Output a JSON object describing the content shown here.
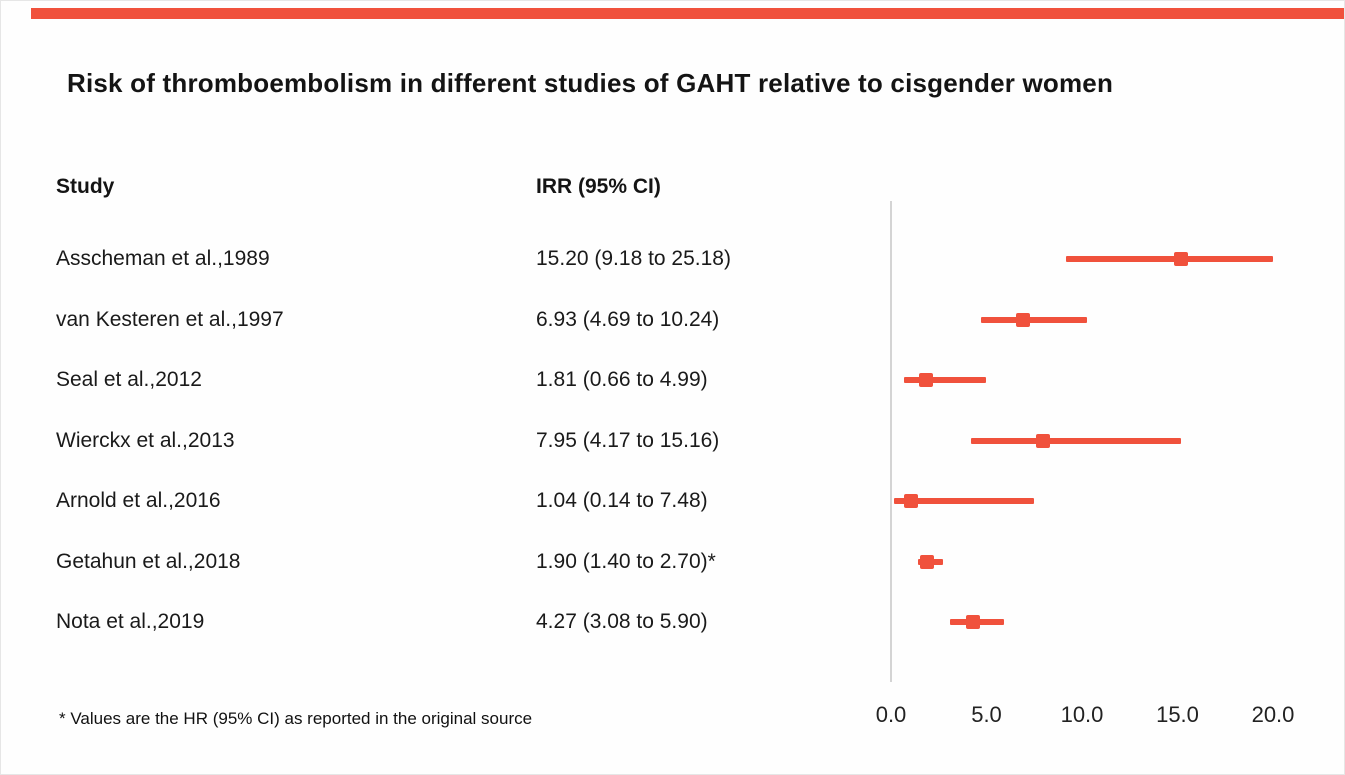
{
  "page": {
    "accent_color": "#f0513c"
  },
  "chart_data": {
    "type": "scatter",
    "subtype": "forest-plot",
    "title": "Risk of thromboembolism in different studies of GAHT relative to cisgender women",
    "columns": [
      "Study",
      "IRR (95% CI)"
    ],
    "studies": [
      {
        "name": "Asscheman et al.,1989",
        "irr_label": "15.20 (9.18 to 25.18)",
        "est": 15.2,
        "lo": 9.18,
        "hi": 25.18
      },
      {
        "name": "van Kesteren et al.,1997",
        "irr_label": "6.93 (4.69 to 10.24)",
        "est": 6.93,
        "lo": 4.69,
        "hi": 10.24
      },
      {
        "name": "Seal et al.,2012",
        "irr_label": "1.81 (0.66 to 4.99)",
        "est": 1.81,
        "lo": 0.66,
        "hi": 4.99
      },
      {
        "name": "Wierckx et al.,2013",
        "irr_label": "7.95 (4.17 to 15.16)",
        "est": 7.95,
        "lo": 4.17,
        "hi": 15.16
      },
      {
        "name": "Arnold et al.,2016",
        "irr_label": "1.04 (0.14 to 7.48)",
        "est": 1.04,
        "lo": 0.14,
        "hi": 7.48
      },
      {
        "name": "Getahun et al.,2018",
        "irr_label": "1.90 (1.40 to 2.70)*",
        "est": 1.9,
        "lo": 1.4,
        "hi": 2.7
      },
      {
        "name": "Nota et al.,2019",
        "irr_label": "4.27 (3.08 to 5.90)",
        "est": 4.27,
        "lo": 3.08,
        "hi": 5.9
      }
    ],
    "x_axis": {
      "min": 0,
      "max": 20,
      "ticks": [
        0,
        5,
        10,
        15,
        20
      ],
      "tick_labels": [
        "0.0",
        "5.0",
        "10.0",
        "15.0",
        "20.0"
      ]
    },
    "footnote": "* Values are the HR (95% CI) as reported in the original source",
    "marker_color": "#f0513c",
    "axis_line_color": "#d4d4d4",
    "legend": "none",
    "grid": "off"
  }
}
